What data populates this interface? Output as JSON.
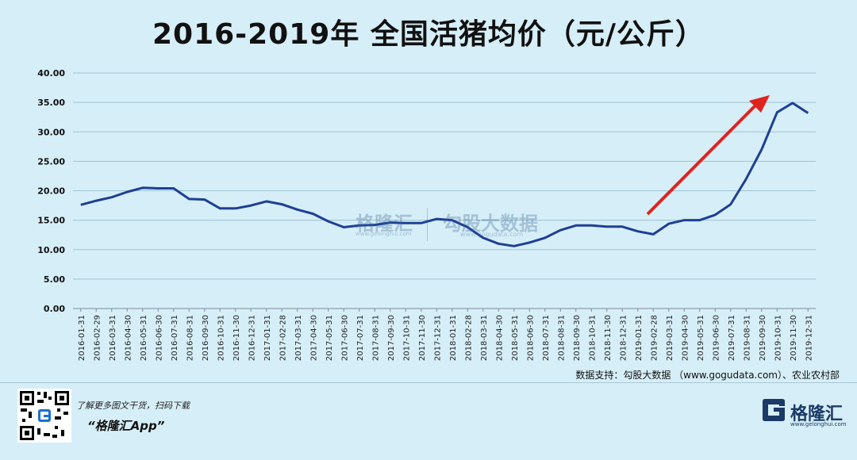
{
  "chart_data": {
    "type": "line",
    "title": "2016-2019年 全国活猪均价（元/公斤）",
    "x": [
      "2016-01-31",
      "2016-02-29",
      "2016-03-31",
      "2016-04-30",
      "2016-05-31",
      "2016-06-30",
      "2016-07-31",
      "2016-08-31",
      "2016-09-30",
      "2016-10-31",
      "2016-11-30",
      "2016-12-31",
      "2017-01-31",
      "2017-02-28",
      "2017-03-31",
      "2017-04-30",
      "2017-05-31",
      "2017-06-30",
      "2017-07-31",
      "2017-08-31",
      "2017-09-30",
      "2017-10-31",
      "2017-11-30",
      "2017-12-31",
      "2018-01-31",
      "2018-02-28",
      "2018-03-31",
      "2018-04-30",
      "2018-05-31",
      "2018-06-30",
      "2018-07-31",
      "2018-08-31",
      "2018-09-30",
      "2018-10-31",
      "2018-11-30",
      "2018-12-31",
      "2019-01-31",
      "2019-02-28",
      "2019-03-31",
      "2019-04-30",
      "2019-05-31",
      "2019-06-30",
      "2019-07-31",
      "2019-08-31",
      "2019-09-30",
      "2019-10-31",
      "2019-11-30",
      "2019-12-31"
    ],
    "series": [
      {
        "values": [
          17.6,
          18.3,
          18.9,
          19.8,
          20.5,
          20.4,
          20.4,
          18.6,
          18.5,
          17.0,
          17.0,
          17.5,
          18.2,
          17.7,
          16.8,
          16.1,
          14.8,
          13.8,
          14.1,
          14.2,
          14.6,
          14.5,
          14.5,
          15.2,
          15.0,
          13.8,
          12.0,
          11.0,
          10.6,
          11.2,
          12.0,
          13.3,
          14.1,
          14.1,
          13.9,
          13.9,
          13.1,
          12.6,
          14.4,
          15.0,
          15.0,
          15.9,
          17.7,
          22.0,
          27.0,
          33.3,
          34.9,
          33.2
        ]
      }
    ],
    "yticks": [
      "0.00",
      "5.00",
      "10.00",
      "15.00",
      "20.00",
      "25.00",
      "30.00",
      "35.00",
      "40.00"
    ],
    "ylim": [
      0,
      40
    ],
    "grid": true,
    "line_color": "#1f3f94",
    "annotation": "red upward arrow"
  },
  "source": "数据支持：勾股大数据 （www.gogudata.com）、农业农村部",
  "promo": {
    "line1": "了解更多图文干货，扫码下载",
    "line2": "“格隆汇App”"
  },
  "logo": {
    "name": "格隆汇",
    "url": "www.gelonghui.com"
  },
  "watermark": {
    "brand1": "格隆汇",
    "brand1_url": "www.gelonghui.com",
    "brand2": "勾股大数据",
    "brand2_url": "www.gogudata.com"
  },
  "colors": {
    "background": "#d6eef7",
    "arrow": "#e0231f",
    "logo": "#1b3a66"
  }
}
